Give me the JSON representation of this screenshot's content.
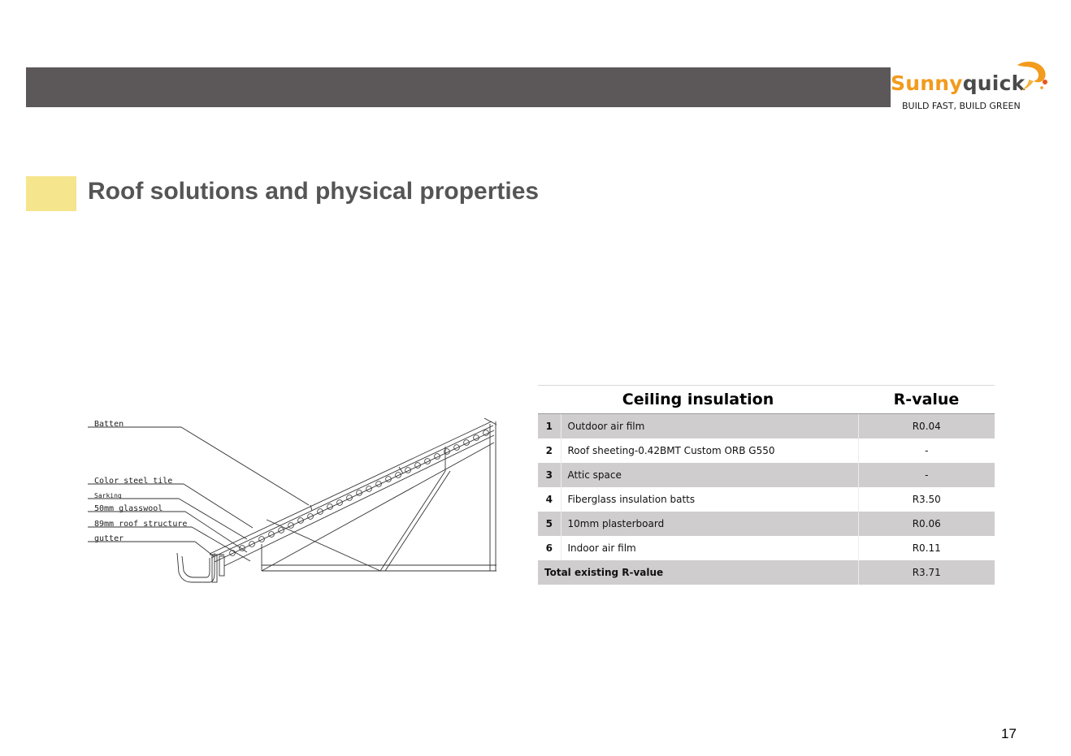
{
  "brand": {
    "name_part1": "Sunny",
    "name_part2": "quick",
    "tagline": "BUILD FAST, BUILD GREEN",
    "colors": {
      "orange": "#f29b1e",
      "dark": "#4a4a4a",
      "header": "#5c5758",
      "accent": "#f5e58c"
    }
  },
  "page": {
    "title": "Roof solutions and physical properties",
    "number": "17"
  },
  "diagram": {
    "labels": {
      "batten": "Batten",
      "tile": "Color steel tile",
      "sarking": "Sarking",
      "wool": "50mm glasswool",
      "structure": "89mm roof structure",
      "gutter": "gutter"
    }
  },
  "table": {
    "header_insulation": "Ceiling insulation",
    "header_rvalue": "R-value",
    "rows": [
      {
        "num": "1",
        "desc": "Outdoor air film",
        "val": "R0.04"
      },
      {
        "num": "2",
        "desc": "Roof sheeting-0.42BMT Custom ORB G550",
        "val": "-"
      },
      {
        "num": "3",
        "desc": "Attic space",
        "val": "-"
      },
      {
        "num": "4",
        "desc": "Fiberglass insulation batts",
        "val": "R3.50"
      },
      {
        "num": "5",
        "desc": "10mm plasterboard",
        "val": "R0.06"
      },
      {
        "num": "6",
        "desc": "Indoor air film",
        "val": "R0.11"
      }
    ],
    "total_label": "Total existing R-value",
    "total_value": "R3.71"
  }
}
